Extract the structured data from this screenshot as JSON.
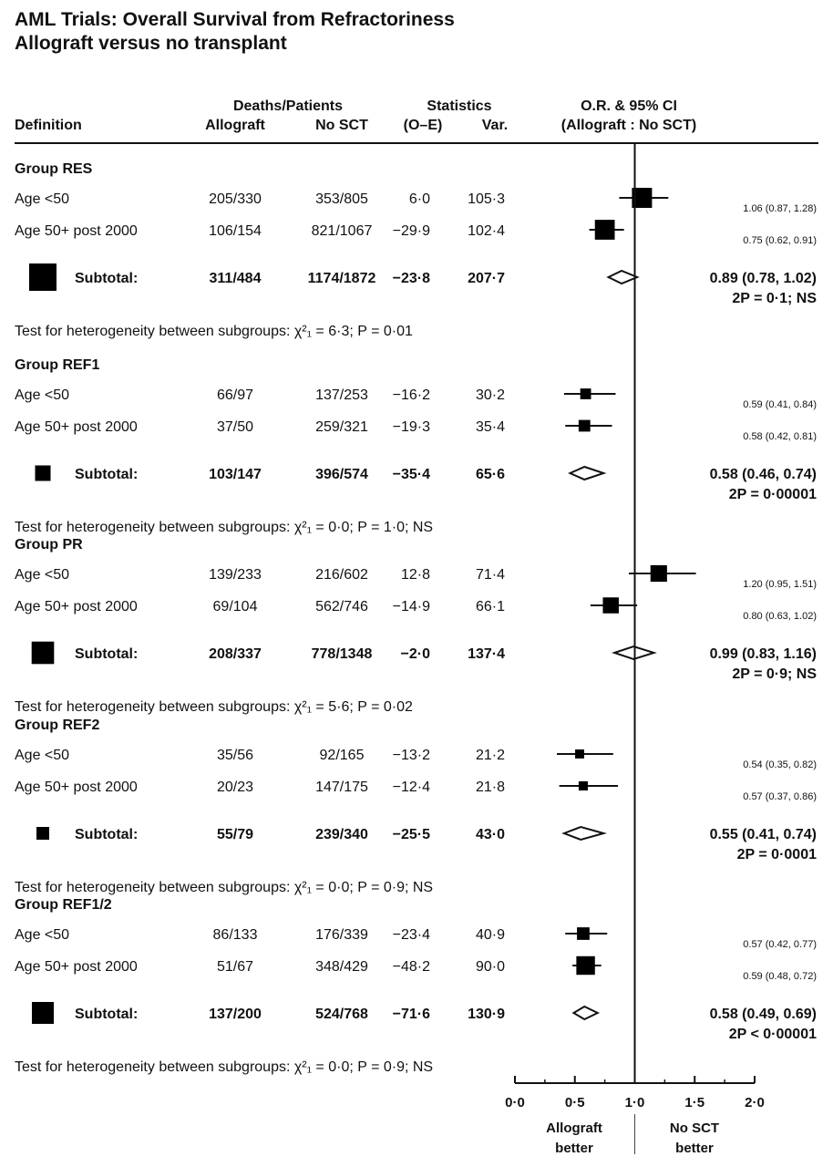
{
  "chart_data": {
    "type": "forest",
    "title": "AML Trials: Overall Survival from Refractoriness",
    "subtitle": "Allograft versus no transplant",
    "headers": {
      "group_deaths": "Deaths/Patients",
      "group_stats": "Statistics",
      "group_or": "O.R. & 95% CI",
      "definition": "Definition",
      "allograft": "Allograft",
      "no_sct": "No SCT",
      "oe": "(O–E)",
      "var": "Var.",
      "or_sub": "(Allograft : No SCT)"
    },
    "x_axis": {
      "range": [
        0.0,
        2.0
      ],
      "ticks": [
        0.0,
        0.5,
        1.0,
        1.5,
        2.0
      ],
      "tick_labels": [
        "0·0",
        "0·5",
        "1·0",
        "1·5",
        "2·0"
      ],
      "reference_line": 1.0,
      "left_label_1": "Allograft",
      "left_label_2": "better",
      "right_label_1": "No SCT",
      "right_label_2": "better"
    },
    "groups": [
      {
        "name": "Group RES",
        "rows": [
          {
            "label": "Age <50",
            "allograft": "205/330",
            "no_sct": "353/805",
            "oe": "6·0",
            "var": "105·3",
            "or": 1.06,
            "lo": 0.87,
            "hi": 1.28,
            "ci_text": "1.06 (0.87, 1.28)"
          },
          {
            "label": "Age 50+ post 2000",
            "allograft": "106/154",
            "no_sct": "821/1067",
            "oe": "−29·9",
            "var": "102·4",
            "or": 0.75,
            "lo": 0.62,
            "hi": 0.91,
            "ci_text": "0.75 (0.62, 0.91)"
          }
        ],
        "subtotal": {
          "label": "Subtotal:",
          "allograft": "311/484",
          "no_sct": "1174/1872",
          "oe": "−23·8",
          "var": "207·7",
          "or": 0.89,
          "lo": 0.78,
          "hi": 1.02,
          "ci_text": "0.89 (0.78, 1.02)",
          "p_text": "2P = 0·1; NS"
        },
        "heterogeneity": "Test for heterogeneity between subgroups: χ²₁ = 6·3; P = 0·01"
      },
      {
        "name": "Group REF1",
        "rows": [
          {
            "label": "Age <50",
            "allograft": "66/97",
            "no_sct": "137/253",
            "oe": "−16·2",
            "var": "30·2",
            "or": 0.59,
            "lo": 0.41,
            "hi": 0.84,
            "ci_text": "0.59 (0.41, 0.84)"
          },
          {
            "label": "Age 50+ post 2000",
            "allograft": "37/50",
            "no_sct": "259/321",
            "oe": "−19·3",
            "var": "35·4",
            "or": 0.58,
            "lo": 0.42,
            "hi": 0.81,
            "ci_text": "0.58 (0.42, 0.81)"
          }
        ],
        "subtotal": {
          "label": "Subtotal:",
          "allograft": "103/147",
          "no_sct": "396/574",
          "oe": "−35·4",
          "var": "65·6",
          "or": 0.58,
          "lo": 0.46,
          "hi": 0.74,
          "ci_text": "0.58 (0.46, 0.74)",
          "p_text": "2P = 0·00001"
        },
        "heterogeneity": "Test for heterogeneity between subgroups: χ²₁ = 0·0; P = 1·0; NS"
      },
      {
        "name": "Group PR",
        "rows": [
          {
            "label": "Age <50",
            "allograft": "139/233",
            "no_sct": "216/602",
            "oe": "12·8",
            "var": "71·4",
            "or": 1.2,
            "lo": 0.95,
            "hi": 1.51,
            "ci_text": "1.20 (0.95, 1.51)"
          },
          {
            "label": "Age 50+ post 2000",
            "allograft": "69/104",
            "no_sct": "562/746",
            "oe": "−14·9",
            "var": "66·1",
            "or": 0.8,
            "lo": 0.63,
            "hi": 1.02,
            "ci_text": "0.80 (0.63, 1.02)"
          }
        ],
        "subtotal": {
          "label": "Subtotal:",
          "allograft": "208/337",
          "no_sct": "778/1348",
          "oe": "−2·0",
          "var": "137·4",
          "or": 0.99,
          "lo": 0.83,
          "hi": 1.16,
          "ci_text": "0.99 (0.83, 1.16)",
          "p_text": "2P = 0·9; NS"
        },
        "heterogeneity": "Test for heterogeneity between subgroups: χ²₁ = 5·6; P = 0·02"
      },
      {
        "name": "Group REF2",
        "rows": [
          {
            "label": "Age <50",
            "allograft": "35/56",
            "no_sct": "92/165",
            "oe": "−13·2",
            "var": "21·2",
            "or": 0.54,
            "lo": 0.35,
            "hi": 0.82,
            "ci_text": "0.54 (0.35, 0.82)"
          },
          {
            "label": "Age 50+ post 2000",
            "allograft": "20/23",
            "no_sct": "147/175",
            "oe": "−12·4",
            "var": "21·8",
            "or": 0.57,
            "lo": 0.37,
            "hi": 0.86,
            "ci_text": "0.57 (0.37, 0.86)"
          }
        ],
        "subtotal": {
          "label": "Subtotal:",
          "allograft": "55/79",
          "no_sct": "239/340",
          "oe": "−25·5",
          "var": "43·0",
          "or": 0.55,
          "lo": 0.41,
          "hi": 0.74,
          "ci_text": "0.55 (0.41, 0.74)",
          "p_text": "2P = 0·0001"
        },
        "heterogeneity": "Test for heterogeneity between subgroups: χ²₁ = 0·0; P = 0·9; NS"
      },
      {
        "name": "Group REF1/2",
        "rows": [
          {
            "label": "Age <50",
            "allograft": "86/133",
            "no_sct": "176/339",
            "oe": "−23·4",
            "var": "40·9",
            "or": 0.57,
            "lo": 0.42,
            "hi": 0.77,
            "ci_text": "0.57 (0.42, 0.77)"
          },
          {
            "label": "Age 50+ post 2000",
            "allograft": "51/67",
            "no_sct": "348/429",
            "oe": "−48·2",
            "var": "90·0",
            "or": 0.59,
            "lo": 0.48,
            "hi": 0.72,
            "ci_text": "0.59 (0.48, 0.72)"
          }
        ],
        "subtotal": {
          "label": "Subtotal:",
          "allograft": "137/200",
          "no_sct": "524/768",
          "oe": "−71·6",
          "var": "130·9",
          "or": 0.58,
          "lo": 0.49,
          "hi": 0.69,
          "ci_text": "0.58 (0.49, 0.69)",
          "p_text": "2P < 0·00001"
        },
        "heterogeneity": "Test for heterogeneity between subgroups: χ²₁ = 0·0; P = 0·9; NS"
      }
    ]
  }
}
